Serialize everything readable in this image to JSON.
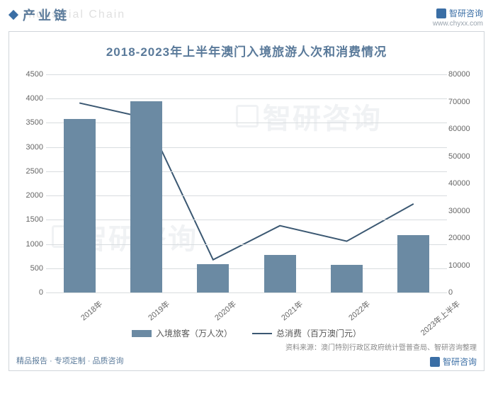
{
  "header": {
    "section_label": "产业链",
    "shadow_text": "Industrial Chain",
    "brand_name": "智研咨询",
    "brand_url": "www.chyxx.com"
  },
  "chart": {
    "type": "bar+line",
    "title": "2018-2023年上半年澳门入境旅游人次和消费情况",
    "categories": [
      "2018年",
      "2019年",
      "2020年",
      "2021年",
      "2022年",
      "2023年上半年"
    ],
    "bar_series": {
      "label": "入境旅客（万人次）",
      "values": [
        3580,
        3940,
        590,
        770,
        570,
        1180
      ],
      "color": "#6b8aa3",
      "bar_width": 0.48
    },
    "line_series": {
      "label": "总消费（百万澳门元）",
      "values": [
        69500,
        64000,
        12000,
        24500,
        18800,
        32500
      ],
      "color": "#3b5872",
      "line_width": 2
    },
    "y_left": {
      "min": 0,
      "max": 4500,
      "step": 500
    },
    "y_right": {
      "min": 0,
      "max": 80000,
      "step": 10000
    },
    "grid_color": "#d8dcdf",
    "background_color": "#ffffff",
    "title_fontsize": 17,
    "axis_fontsize": 11,
    "legend_fontsize": 12,
    "source": "资料来源：澳门特别行政区政府统计暨普查局、智研咨询整理",
    "footer_links": "精品报告 · 专项定制 · 品质咨询",
    "watermark_text": "智研咨询"
  }
}
